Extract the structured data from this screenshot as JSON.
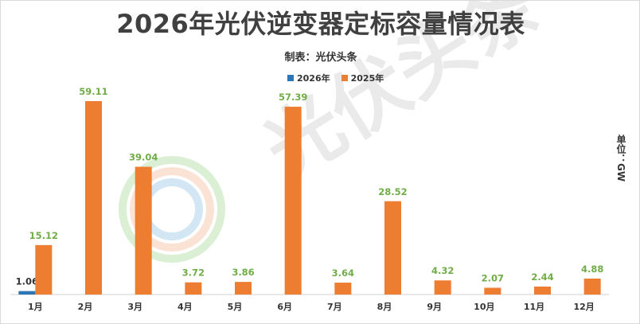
{
  "chart_data": {
    "type": "bar",
    "title": "2026年光伏逆变器定标容量情况表",
    "subtitle": "制表：光伏头条",
    "unit": "单位：GW",
    "categories": [
      "1月",
      "2月",
      "3月",
      "4月",
      "5月",
      "6月",
      "7月",
      "8月",
      "9月",
      "10月",
      "11月",
      "12月"
    ],
    "series": [
      {
        "name": "2026年",
        "color": "#2e75b6",
        "values": [
          1.06,
          null,
          null,
          null,
          null,
          null,
          null,
          null,
          null,
          null,
          null,
          null
        ]
      },
      {
        "name": "2025年",
        "color": "#ed7d31",
        "values": [
          15.12,
          59.11,
          39.04,
          3.72,
          3.86,
          57.39,
          3.64,
          28.52,
          4.32,
          2.07,
          2.44,
          4.88
        ]
      }
    ],
    "label_colors": {
      "2026年": "#333333",
      "2025年": "#70ad47"
    },
    "ylim": [
      0,
      60
    ],
    "grid": false,
    "legend_position": "top-center"
  },
  "watermark": {
    "text": "光伏头条"
  }
}
